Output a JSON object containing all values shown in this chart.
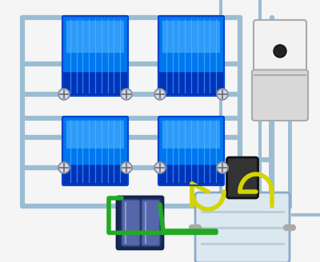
{
  "bg_color": "#f5f5f5",
  "pipe_color": "#9bbdd4",
  "pipe_lw": 4.5,
  "rad_blue_dark": "#0033bb",
  "rad_blue_mid": "#0077ee",
  "rad_blue_light": "#44aaff",
  "rad_border": "#0044cc",
  "rad_line": "#55bbff",
  "valve_fill": "#d0d8e0",
  "valve_edge": "#888899",
  "boiler_top": "#f2f2f2",
  "boiler_bot": "#d8d8d8",
  "boiler_mid": "#e5e5e5",
  "boiler_edge": "#aaaaaa",
  "yellow_hose": "#d4d400",
  "green_hose": "#22aa22",
  "mag_body": "#1a2a55",
  "mag_cyl": "#2a3a6a",
  "flush_body": "#dce8f0",
  "flush_ring": "#b8ccd8",
  "flush_top_dark": "#333333",
  "flush_edge": "#88aacc"
}
